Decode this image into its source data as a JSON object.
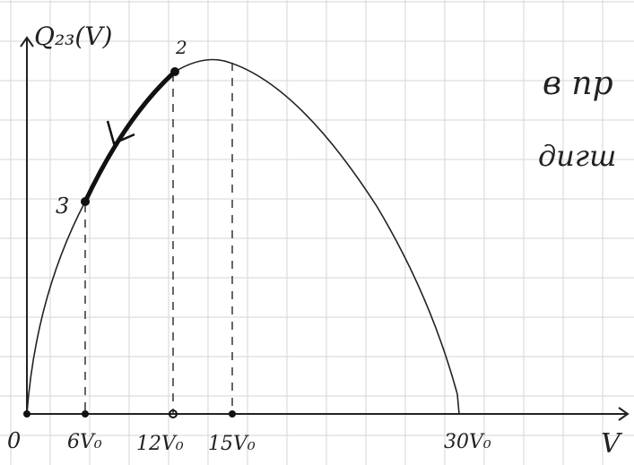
{
  "y_axis_label": "Q₂₃(V)",
  "x_axis_label": "V",
  "x_ticks": [
    "0",
    "6V₀",
    "12V₀",
    "15V₀",
    "30V₀"
  ],
  "points": [
    {
      "label": "2"
    },
    {
      "label": "3"
    }
  ],
  "side_text": [
    "в пр",
    "дигш"
  ]
}
